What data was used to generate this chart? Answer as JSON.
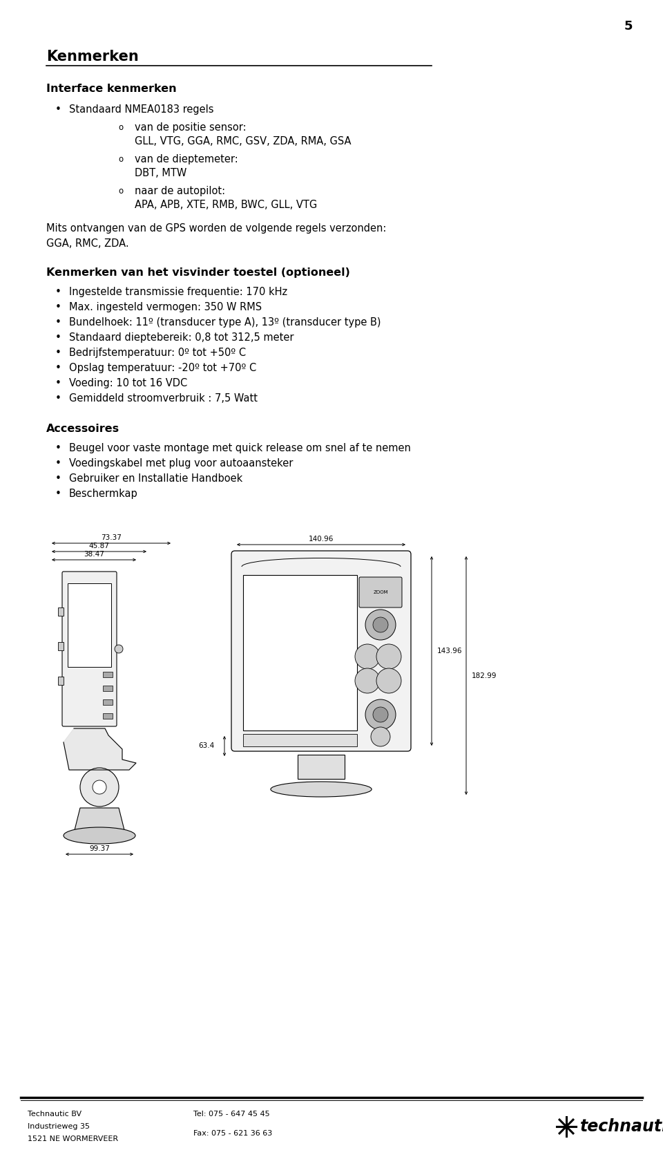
{
  "page_number": "5",
  "title": "Kenmerken",
  "bg_color": "#ffffff",
  "text_color": "#000000",
  "section1_header": "Interface kenmerken",
  "section1_bullet": "Standaard NMEA0183 regels",
  "section1_sub": [
    [
      "van de positie sensor:",
      "GLL, VTG, GGA, RMC, GSV, ZDA, RMA, GSA"
    ],
    [
      "van de dieptemeter:",
      "DBT, MTW"
    ],
    [
      "naar de autopilot:",
      "APA, APB, XTE, RMB, BWC, GLL, VTG"
    ]
  ],
  "section1_para": [
    "Mits ontvangen van de GPS worden de volgende regels verzonden:",
    "GGA, RMC, ZDA."
  ],
  "section2_header": "Kenmerken van het visvinder toestel (optioneel)",
  "section2_bullets": [
    "Ingestelde transmissie frequentie: 170 kHz",
    "Max. ingesteld vermogen: 350 W RMS",
    "Bundelhoek: 11º (transducer type A), 13º (transducer type B)",
    "Standaard dieptebereik: 0,8 tot 312,5 meter",
    "Bedrijfstemperatuur: 0º tot +50º C",
    "Opslag temperatuur: -20º tot +70º C",
    "Voeding: 10 tot 16 VDC",
    "Gemiddeld stroomverbruik : 7,5 Watt"
  ],
  "section3_header": "Accessoires",
  "section3_bullets": [
    "Beugel voor vaste montage met quick release om snel af te nemen",
    "Voedingskabel met plug voor autoaansteker",
    "Gebruiker en Installatie Handboek",
    "Beschermkap"
  ],
  "footer_left": [
    "Technautic BV",
    "Industrieweg 35",
    "1521 NE WORMERVEER"
  ],
  "footer_mid": [
    "Tel: 075 - 647 45 45",
    "",
    "Fax: 075 - 621 36 63"
  ],
  "footer_brand": "technautic",
  "dim_73": "73.37",
  "dim_45": "45.87",
  "dim_38": "38.47",
  "dim_140": "140.96",
  "dim_143": "143.96",
  "dim_182": "182.99",
  "dim_63": "63.4",
  "dim_99": "99.37",
  "lc": "#555555",
  "lw": 0.8
}
